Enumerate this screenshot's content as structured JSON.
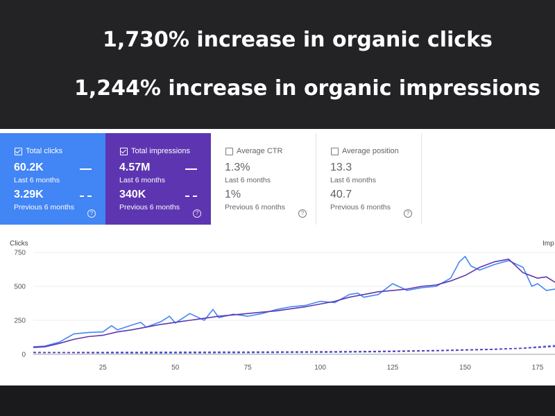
{
  "headlines": {
    "clicks": "1,730%  increase in organic clicks",
    "impressions": "1,244%  increase in organic impressions"
  },
  "cards": [
    {
      "label": "Total clicks",
      "current": "60.2K",
      "current_period": "Last 6 months",
      "previous": "3.29K",
      "previous_period": "Previous 6 months",
      "checked": true,
      "color": "#4285f4"
    },
    {
      "label": "Total impressions",
      "current": "4.57M",
      "current_period": "Last 6 months",
      "previous": "340K",
      "previous_period": "Previous 6 months",
      "checked": true,
      "color": "#5e35b1"
    },
    {
      "label": "Average CTR",
      "current": "1.3%",
      "current_period": "Last 6 months",
      "previous": "1%",
      "previous_period": "Previous 6 months",
      "checked": false
    },
    {
      "label": "Average position",
      "current": "13.3",
      "current_period": "Last 6 months",
      "previous": "40.7",
      "previous_period": "Previous 6 months",
      "checked": false
    }
  ],
  "help_glyph": "?",
  "chart_data": {
    "type": "line",
    "ylabel_left": "Clicks",
    "ylabel_right": "Imp",
    "ylim": [
      0,
      750
    ],
    "yticks": [
      0,
      250,
      500,
      750
    ],
    "xlim": [
      1,
      181
    ],
    "xticks": [
      25,
      50,
      75,
      100,
      125,
      150,
      175
    ],
    "grid": true,
    "colors": {
      "clicks": "#4285f4",
      "impressions": "#5e35b1"
    },
    "series": [
      {
        "key": "clicks",
        "style": "solid",
        "x": [
          1,
          5,
          10,
          15,
          20,
          25,
          28,
          30,
          35,
          38,
          40,
          45,
          48,
          50,
          55,
          60,
          63,
          65,
          70,
          75,
          80,
          85,
          90,
          95,
          100,
          105,
          110,
          113,
          115,
          120,
          125,
          130,
          135,
          140,
          145,
          148,
          150,
          152,
          155,
          160,
          165,
          170,
          173,
          175,
          178,
          181
        ],
        "values": [
          55,
          60,
          90,
          150,
          160,
          165,
          210,
          180,
          215,
          235,
          200,
          240,
          280,
          230,
          300,
          250,
          330,
          270,
          295,
          280,
          300,
          330,
          350,
          360,
          390,
          380,
          440,
          450,
          420,
          440,
          520,
          470,
          490,
          500,
          560,
          680,
          720,
          650,
          620,
          660,
          690,
          640,
          500,
          520,
          470,
          480
        ]
      },
      {
        "key": "impressions",
        "style": "solid",
        "x": [
          1,
          5,
          10,
          15,
          20,
          25,
          30,
          35,
          40,
          45,
          50,
          55,
          60,
          65,
          70,
          75,
          80,
          85,
          90,
          95,
          100,
          105,
          110,
          115,
          120,
          125,
          130,
          135,
          140,
          145,
          150,
          155,
          160,
          165,
          170,
          175,
          178,
          181
        ],
        "values": [
          50,
          55,
          80,
          110,
          130,
          140,
          165,
          180,
          200,
          220,
          235,
          250,
          265,
          280,
          290,
          300,
          310,
          320,
          335,
          350,
          370,
          390,
          420,
          440,
          460,
          470,
          480,
          500,
          510,
          540,
          580,
          640,
          680,
          700,
          600,
          560,
          570,
          530
        ]
      },
      {
        "key": "clicks_previous",
        "style": "dashed",
        "x": [
          1,
          20,
          40,
          60,
          80,
          100,
          120,
          140,
          160,
          170,
          175,
          181
        ],
        "values": [
          15,
          10,
          8,
          10,
          12,
          14,
          18,
          25,
          35,
          45,
          55,
          65
        ]
      },
      {
        "key": "impressions_previous",
        "style": "dashed",
        "x": [
          1,
          20,
          40,
          60,
          80,
          100,
          120,
          140,
          160,
          170,
          175,
          181
        ],
        "values": [
          12,
          14,
          15,
          16,
          17,
          19,
          22,
          28,
          38,
          45,
          50,
          58
        ]
      }
    ]
  }
}
